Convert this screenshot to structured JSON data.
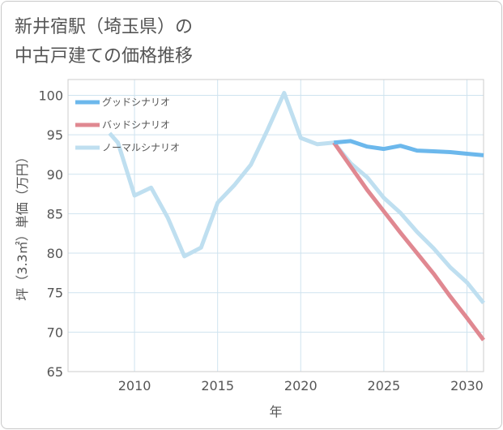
{
  "title_lines": [
    "新井宿駅（埼玉県）の",
    "中古戸建ての価格推移"
  ],
  "colors": {
    "good": "#6cb8ec",
    "bad": "#e08891",
    "normal": "#bfdff0",
    "grid": "#cfe3ef",
    "text": "#555555"
  },
  "chart_data": {
    "type": "line",
    "title": "新井宿駅（埼玉県）の中古戸建ての価格推移",
    "xlabel": "年",
    "ylabel": "坪（3.3㎡）単価（万円）",
    "xlim": [
      2006,
      2031
    ],
    "ylim": [
      65,
      102
    ],
    "xticks": [
      2010,
      2015,
      2020,
      2025,
      2030
    ],
    "yticks": [
      65,
      70,
      75,
      80,
      85,
      90,
      95,
      100
    ],
    "legend_position": "top-left",
    "series": [
      {
        "name": "グッドシナリオ",
        "color": "#6cb8ec",
        "x": [
          2022,
          2023,
          2024,
          2025,
          2026,
          2027,
          2028,
          2029,
          2030,
          2031
        ],
        "y": [
          94.0,
          94.2,
          93.5,
          93.2,
          93.6,
          93.0,
          92.9,
          92.8,
          92.6,
          92.4
        ]
      },
      {
        "name": "バッドシナリオ",
        "color": "#e08891",
        "x": [
          2022,
          2023,
          2024,
          2025,
          2026,
          2027,
          2028,
          2029,
          2030,
          2031
        ],
        "y": [
          94.0,
          91.0,
          88.0,
          85.3,
          82.6,
          80.0,
          77.4,
          74.5,
          71.8,
          69.0
        ]
      },
      {
        "name": "ノーマルシナリオ",
        "color": "#bfdff0",
        "x": [
          2008.5,
          2009,
          2010,
          2011,
          2012,
          2013,
          2014,
          2015,
          2016,
          2017,
          2018,
          2019,
          2020,
          2021,
          2022,
          2023,
          2024,
          2025,
          2026,
          2027,
          2028,
          2029,
          2030,
          2031
        ],
        "y": [
          95.2,
          94.0,
          87.3,
          88.3,
          84.5,
          79.6,
          80.7,
          86.4,
          88.6,
          91.2,
          95.6,
          100.3,
          94.6,
          93.8,
          94.0,
          91.4,
          89.6,
          87.0,
          85.1,
          82.7,
          80.6,
          78.2,
          76.3,
          73.7
        ]
      }
    ]
  }
}
